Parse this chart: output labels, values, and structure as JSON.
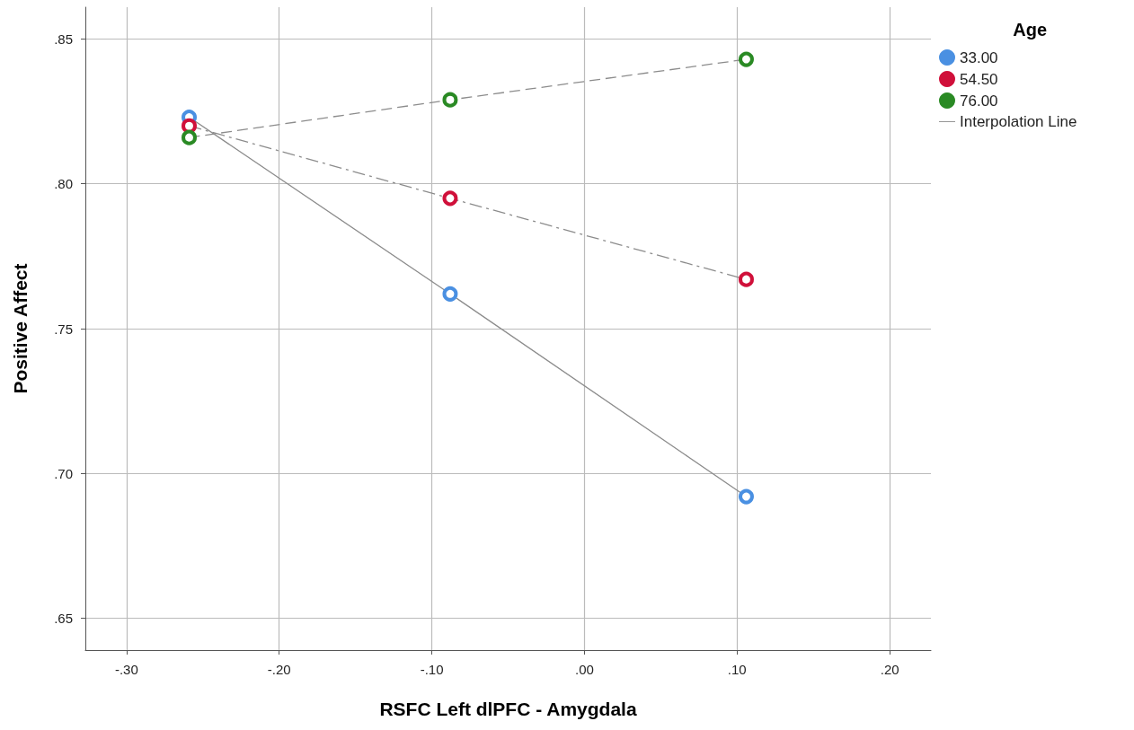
{
  "chart_data": {
    "type": "line",
    "xlabel": "RSFC Left dlPFC - Amygdala",
    "ylabel": "Positive Affect",
    "legend_title": "Age",
    "x": [
      -0.259,
      -0.088,
      0.106
    ],
    "series": [
      {
        "name": "33.00",
        "color": "#4a90e2",
        "values": [
          0.823,
          0.762,
          0.692
        ],
        "line_style": "solid"
      },
      {
        "name": "54.50",
        "color": "#d0103a",
        "values": [
          0.82,
          0.795,
          0.767
        ],
        "line_style": "dashdot"
      },
      {
        "name": "76.00",
        "color": "#2a8a24",
        "values": [
          0.816,
          0.829,
          0.843
        ],
        "line_style": "dashed"
      }
    ],
    "annotations": [
      "Interpolation Line"
    ],
    "xlim": [
      -0.327,
      0.227
    ],
    "ylim": [
      0.639,
      0.861
    ],
    "xticks": [
      {
        "value": -0.3,
        "label": "-.30"
      },
      {
        "value": -0.2,
        "label": "-.20"
      },
      {
        "value": -0.1,
        "label": "-.10"
      },
      {
        "value": 0,
        "label": ".00"
      },
      {
        "value": 0.1,
        "label": ".10"
      },
      {
        "value": 0.2,
        "label": ".20"
      }
    ],
    "yticks": [
      {
        "value": 0.65,
        "label": ".65"
      },
      {
        "value": 0.7,
        "label": ".70"
      },
      {
        "value": 0.75,
        "label": ".75"
      },
      {
        "value": 0.8,
        "label": ".80"
      },
      {
        "value": 0.85,
        "label": ".85"
      }
    ],
    "grid": true,
    "legend": "right",
    "marker": "circle"
  }
}
